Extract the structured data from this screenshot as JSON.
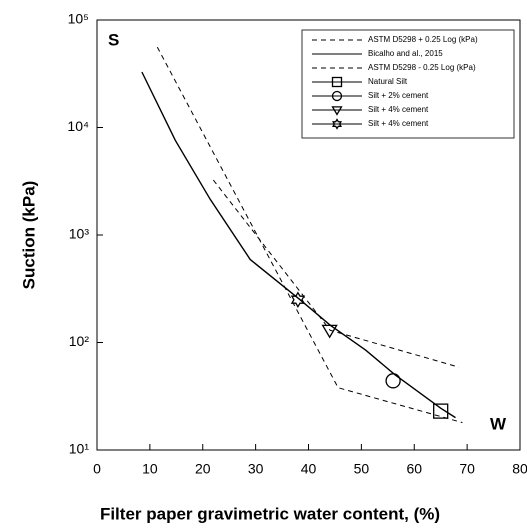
{
  "chart_data": {
    "type": "line",
    "xlabel": "Filter paper gravimetric water content, (%)",
    "ylabel": "Suction (kPa)",
    "annotations": [
      "S",
      "W"
    ],
    "xlim": [
      0,
      80
    ],
    "xticks": [
      0,
      10,
      20,
      30,
      40,
      50,
      60,
      70,
      80
    ],
    "ylim": [
      10,
      100000
    ],
    "yticks": [
      {
        "value": 10,
        "label": "10¹"
      },
      {
        "value": 100,
        "label": "10²"
      },
      {
        "value": 1000,
        "label": "10³"
      },
      {
        "value": 10000,
        "label": "10⁴"
      },
      {
        "value": 100000,
        "label": "10⁵"
      }
    ],
    "log_y": true,
    "legend": "upper right",
    "series": [
      {
        "name": "ASTM D5298 + 0.25 Log (kPa)",
        "color": "#000000",
        "dash": true,
        "x": [
          11.4,
          45.6,
          69.1
        ],
        "values": [
          56000,
          38,
          18
        ]
      },
      {
        "name": "Bicalho and al., 2015",
        "color": "#000000",
        "dash": false,
        "x": [
          8.5,
          14.8,
          21.4,
          29,
          38.4,
          44.1,
          50.8,
          56.4,
          65,
          67.8
        ],
        "values": [
          32800,
          7600,
          2150,
          590,
          250,
          145,
          85,
          50,
          24.5,
          20
        ]
      },
      {
        "name": "ASTM D5298 - 0.25 Log (kPa)",
        "color": "#000000",
        "dash": true,
        "x": [
          22,
          44.1,
          68.4
        ],
        "values": [
          3250,
          130,
          59
        ]
      },
      {
        "name": "Natural Silt",
        "color": "#000000",
        "marker": "square",
        "x": [
          65
        ],
        "values": [
          23
        ]
      },
      {
        "name": "Silt + 2% cement",
        "color": "#000000",
        "marker": "circle",
        "x": [
          56
        ],
        "values": [
          44
        ]
      },
      {
        "name": "Silt + 4% cement",
        "color": "#000000",
        "marker": "triangle",
        "x": [
          44
        ],
        "values": [
          130
        ]
      },
      {
        "name": "Silt + 4% cement",
        "color": "#000000",
        "marker": "star",
        "x": [
          38
        ],
        "values": [
          250
        ]
      }
    ]
  }
}
